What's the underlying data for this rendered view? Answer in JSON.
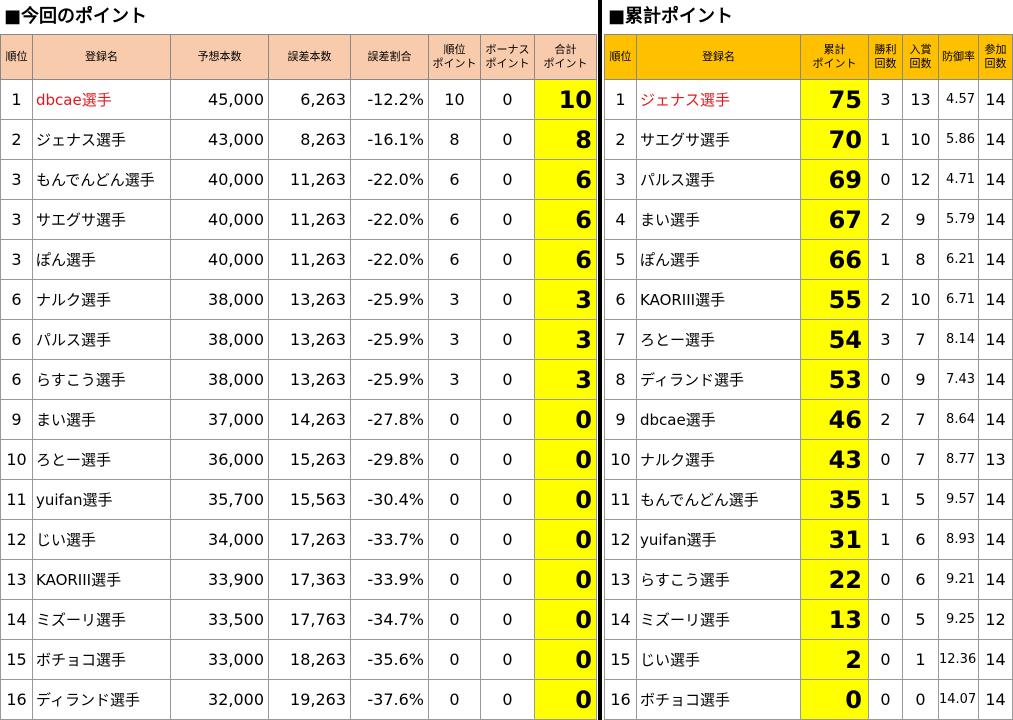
{
  "left": {
    "title": "■今回のポイント",
    "headers": [
      "順位",
      "登録名",
      "予想本数",
      "誤差本数",
      "誤差割合",
      "順位\nポイント",
      "ボーナス\nポイント",
      "合計\nポイント"
    ],
    "rows": [
      {
        "rank": "1",
        "name": "dbcae選手",
        "forecast": "45,000",
        "error": "6,263",
        "ratio": "-12.2%",
        "rank_pt": "10",
        "bonus_pt": "0",
        "total_pt": "10",
        "highlight": true
      },
      {
        "rank": "2",
        "name": "ジェナス選手",
        "forecast": "43,000",
        "error": "8,263",
        "ratio": "-16.1%",
        "rank_pt": "8",
        "bonus_pt": "0",
        "total_pt": "8",
        "highlight": false
      },
      {
        "rank": "3",
        "name": "もんでんどん選手",
        "forecast": "40,000",
        "error": "11,263",
        "ratio": "-22.0%",
        "rank_pt": "6",
        "bonus_pt": "0",
        "total_pt": "6",
        "highlight": false
      },
      {
        "rank": "3",
        "name": "サエグサ選手",
        "forecast": "40,000",
        "error": "11,263",
        "ratio": "-22.0%",
        "rank_pt": "6",
        "bonus_pt": "0",
        "total_pt": "6",
        "highlight": false
      },
      {
        "rank": "3",
        "name": "ぽん選手",
        "forecast": "40,000",
        "error": "11,263",
        "ratio": "-22.0%",
        "rank_pt": "6",
        "bonus_pt": "0",
        "total_pt": "6",
        "highlight": false
      },
      {
        "rank": "6",
        "name": "ナルク選手",
        "forecast": "38,000",
        "error": "13,263",
        "ratio": "-25.9%",
        "rank_pt": "3",
        "bonus_pt": "0",
        "total_pt": "3",
        "highlight": false
      },
      {
        "rank": "6",
        "name": "パルス選手",
        "forecast": "38,000",
        "error": "13,263",
        "ratio": "-25.9%",
        "rank_pt": "3",
        "bonus_pt": "0",
        "total_pt": "3",
        "highlight": false
      },
      {
        "rank": "6",
        "name": "らすこう選手",
        "forecast": "38,000",
        "error": "13,263",
        "ratio": "-25.9%",
        "rank_pt": "3",
        "bonus_pt": "0",
        "total_pt": "3",
        "highlight": false
      },
      {
        "rank": "9",
        "name": "まい選手",
        "forecast": "37,000",
        "error": "14,263",
        "ratio": "-27.8%",
        "rank_pt": "0",
        "bonus_pt": "0",
        "total_pt": "0",
        "highlight": false
      },
      {
        "rank": "10",
        "name": "ろとー選手",
        "forecast": "36,000",
        "error": "15,263",
        "ratio": "-29.8%",
        "rank_pt": "0",
        "bonus_pt": "0",
        "total_pt": "0",
        "highlight": false
      },
      {
        "rank": "11",
        "name": "yuifan選手",
        "forecast": "35,700",
        "error": "15,563",
        "ratio": "-30.4%",
        "rank_pt": "0",
        "bonus_pt": "0",
        "total_pt": "0",
        "highlight": false
      },
      {
        "rank": "12",
        "name": "じい選手",
        "forecast": "34,000",
        "error": "17,263",
        "ratio": "-33.7%",
        "rank_pt": "0",
        "bonus_pt": "0",
        "total_pt": "0",
        "highlight": false
      },
      {
        "rank": "13",
        "name": "KAORIII選手",
        "forecast": "33,900",
        "error": "17,363",
        "ratio": "-33.9%",
        "rank_pt": "0",
        "bonus_pt": "0",
        "total_pt": "0",
        "highlight": false
      },
      {
        "rank": "14",
        "name": "ミズーリ選手",
        "forecast": "33,500",
        "error": "17,763",
        "ratio": "-34.7%",
        "rank_pt": "0",
        "bonus_pt": "0",
        "total_pt": "0",
        "highlight": false
      },
      {
        "rank": "15",
        "name": "ボチョコ選手",
        "forecast": "33,000",
        "error": "18,263",
        "ratio": "-35.6%",
        "rank_pt": "0",
        "bonus_pt": "0",
        "total_pt": "0",
        "highlight": false
      },
      {
        "rank": "16",
        "name": "ディランド選手",
        "forecast": "32,000",
        "error": "19,263",
        "ratio": "-37.6%",
        "rank_pt": "0",
        "bonus_pt": "0",
        "total_pt": "0",
        "highlight": false
      }
    ]
  },
  "right": {
    "title": "■累計ポイント",
    "headers": [
      "順位",
      "登録名",
      "累計\nポイント",
      "勝利\n回数",
      "入賞\n回数",
      "防御率",
      "参加\n回数"
    ],
    "rows": [
      {
        "rank": "1",
        "name": "ジェナス選手",
        "total": "75",
        "wins": "3",
        "places": "13",
        "era": "4.57",
        "entries": "14",
        "highlight": true
      },
      {
        "rank": "2",
        "name": "サエグサ選手",
        "total": "70",
        "wins": "1",
        "places": "10",
        "era": "5.86",
        "entries": "14",
        "highlight": false
      },
      {
        "rank": "3",
        "name": "パルス選手",
        "total": "69",
        "wins": "0",
        "places": "12",
        "era": "4.71",
        "entries": "14",
        "highlight": false
      },
      {
        "rank": "4",
        "name": "まい選手",
        "total": "67",
        "wins": "2",
        "places": "9",
        "era": "5.79",
        "entries": "14",
        "highlight": false
      },
      {
        "rank": "5",
        "name": "ぽん選手",
        "total": "66",
        "wins": "1",
        "places": "8",
        "era": "6.21",
        "entries": "14",
        "highlight": false
      },
      {
        "rank": "6",
        "name": "KAORIII選手",
        "total": "55",
        "wins": "2",
        "places": "10",
        "era": "6.71",
        "entries": "14",
        "highlight": false
      },
      {
        "rank": "7",
        "name": "ろとー選手",
        "total": "54",
        "wins": "3",
        "places": "7",
        "era": "8.14",
        "entries": "14",
        "highlight": false
      },
      {
        "rank": "8",
        "name": "ディランド選手",
        "total": "53",
        "wins": "0",
        "places": "9",
        "era": "7.43",
        "entries": "14",
        "highlight": false
      },
      {
        "rank": "9",
        "name": "dbcae選手",
        "total": "46",
        "wins": "2",
        "places": "7",
        "era": "8.64",
        "entries": "14",
        "highlight": false
      },
      {
        "rank": "10",
        "name": "ナルク選手",
        "total": "43",
        "wins": "0",
        "places": "7",
        "era": "8.77",
        "entries": "13",
        "highlight": false
      },
      {
        "rank": "11",
        "name": "もんでんどん選手",
        "total": "35",
        "wins": "1",
        "places": "5",
        "era": "9.57",
        "entries": "14",
        "highlight": false
      },
      {
        "rank": "12",
        "name": "yuifan選手",
        "total": "31",
        "wins": "1",
        "places": "6",
        "era": "8.93",
        "entries": "14",
        "highlight": false
      },
      {
        "rank": "13",
        "name": "らすこう選手",
        "total": "22",
        "wins": "0",
        "places": "6",
        "era": "9.21",
        "entries": "14",
        "highlight": false
      },
      {
        "rank": "14",
        "name": "ミズーリ選手",
        "total": "13",
        "wins": "0",
        "places": "5",
        "era": "9.25",
        "entries": "12",
        "highlight": false
      },
      {
        "rank": "15",
        "name": "じい選手",
        "total": "2",
        "wins": "0",
        "places": "1",
        "era": "12.36",
        "entries": "14",
        "highlight": false
      },
      {
        "rank": "16",
        "name": "ボチョコ選手",
        "total": "0",
        "wins": "0",
        "places": "0",
        "era": "14.07",
        "entries": "14",
        "highlight": false
      }
    ]
  },
  "colors": {
    "left_header_bg": "#f8cbad",
    "right_header_bg": "#ffc000",
    "points_bg": "#ffff00",
    "highlight_text": "#e0191f"
  }
}
